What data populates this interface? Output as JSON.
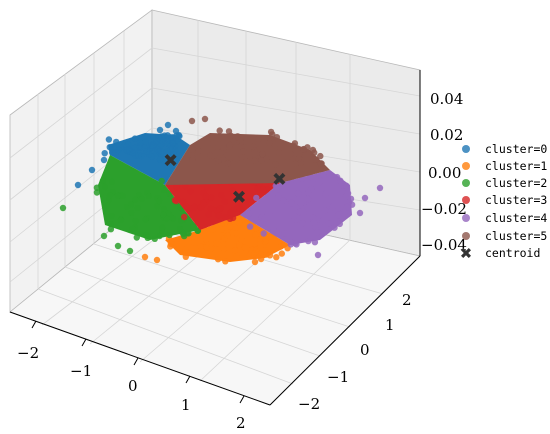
{
  "chart_data": {
    "type": "scatter",
    "projection": "3d",
    "title": "",
    "xlabel": "",
    "ylabel": "",
    "zlabel": "",
    "xlim": [
      -2.4,
      2.4
    ],
    "ylim": [
      -2.4,
      2.4
    ],
    "zlim": [
      -0.05,
      0.05
    ],
    "x_ticks": [
      "−2",
      "−1",
      "0",
      "1",
      "2"
    ],
    "y_ticks": [
      "−2",
      "−1",
      "0",
      "1",
      "2"
    ],
    "z_ticks": [
      "−0.04",
      "−0.02",
      "0.00",
      "0.02",
      "0.04"
    ],
    "grid": true,
    "legend_position": "right",
    "series": [
      {
        "name": "cluster=0",
        "color": "#1f77b4",
        "region": "back-left"
      },
      {
        "name": "cluster=1",
        "color": "#ff7f0e",
        "region": "front"
      },
      {
        "name": "cluster=2",
        "color": "#2ca02c",
        "region": "left"
      },
      {
        "name": "cluster=3",
        "color": "#d62728",
        "region": "center"
      },
      {
        "name": "cluster=4",
        "color": "#9467bd",
        "region": "right"
      },
      {
        "name": "cluster=5",
        "color": "#8c564b",
        "region": "back"
      }
    ],
    "centroid": {
      "name": "centroid",
      "color": "#333333",
      "marker": "X",
      "points": [
        {
          "cluster": 0,
          "x": -1.5,
          "y": 0.9,
          "z": 0.0
        },
        {
          "cluster": 5,
          "x": 0.5,
          "y": 1.6,
          "z": 0.0
        },
        {
          "cluster": 3,
          "x": 0.3,
          "y": 0.3,
          "z": 0.0
        }
      ]
    }
  }
}
